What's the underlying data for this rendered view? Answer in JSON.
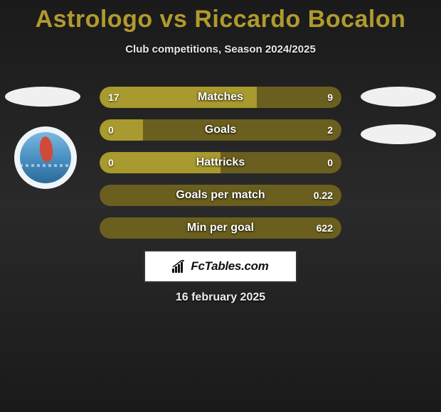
{
  "title_color": "#b09a2e",
  "title": "Astrologo vs Riccardo Bocalon",
  "subtitle": "Club competitions, Season 2024/2025",
  "colors": {
    "left": "#a89a2e",
    "right": "#6a5f1e"
  },
  "bars": [
    {
      "label": "Matches",
      "left": "17",
      "right": "9",
      "left_pct": 65,
      "right_pct": 35
    },
    {
      "label": "Goals",
      "left": "0",
      "right": "2",
      "left_pct": 18,
      "right_pct": 82
    },
    {
      "label": "Hattricks",
      "left": "0",
      "right": "0",
      "left_pct": 50,
      "right_pct": 50
    },
    {
      "label": "Goals per match",
      "left": "",
      "right": "0.22",
      "left_pct": 0,
      "right_pct": 100
    },
    {
      "label": "Min per goal",
      "left": "",
      "right": "622",
      "left_pct": 0,
      "right_pct": 100
    }
  ],
  "footer_brand": "FcTables.com",
  "date": "16 february 2025"
}
